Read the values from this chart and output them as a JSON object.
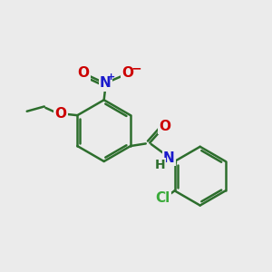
{
  "background_color": "#ebebeb",
  "bond_color": "#2d6e2d",
  "bond_width": 1.8,
  "atom_colors": {
    "O": "#cc0000",
    "N_nitro": "#1a1acc",
    "N_amide": "#1a1acc",
    "Cl": "#3aaa3a",
    "H": "#2d6e2d",
    "C": "#2d6e2d"
  },
  "figsize": [
    3.0,
    3.0
  ],
  "dpi": 100
}
